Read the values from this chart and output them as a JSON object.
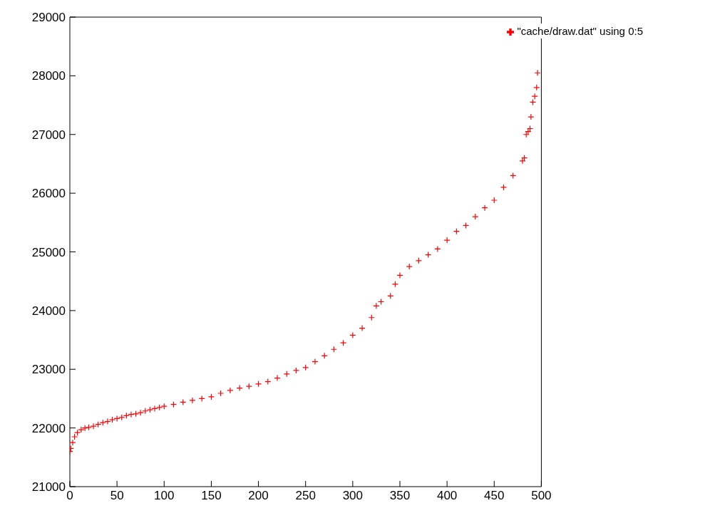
{
  "chart_data": {
    "type": "scatter",
    "marker": "cross",
    "legend": "top right",
    "grid": false,
    "xlim": [
      0,
      500
    ],
    "xticks": [
      0,
      50,
      100,
      150,
      200,
      250,
      300,
      350,
      400,
      450,
      500
    ],
    "ylim": [
      21000,
      29000
    ],
    "yticks": [
      21000,
      22000,
      23000,
      24000,
      25000,
      26000,
      27000,
      28000,
      29000
    ],
    "series": [
      {
        "name": "\"cache/draw.dat\" using 0:5",
        "color": "#ff0000",
        "x": [
          0,
          1,
          3,
          5,
          8,
          12,
          16,
          20,
          25,
          30,
          35,
          40,
          45,
          50,
          55,
          60,
          65,
          70,
          75,
          80,
          85,
          90,
          95,
          100,
          110,
          120,
          130,
          140,
          150,
          160,
          170,
          180,
          190,
          200,
          210,
          220,
          230,
          240,
          250,
          260,
          270,
          280,
          290,
          300,
          310,
          320,
          325,
          330,
          340,
          345,
          350,
          360,
          370,
          380,
          390,
          400,
          410,
          420,
          430,
          440,
          450,
          460,
          470,
          480,
          482,
          484,
          486,
          488,
          489,
          491,
          493,
          495,
          496
        ],
        "values": [
          21600,
          21650,
          21750,
          21850,
          21920,
          21970,
          22000,
          22010,
          22030,
          22060,
          22090,
          22110,
          22140,
          22160,
          22180,
          22210,
          22230,
          22240,
          22260,
          22290,
          22310,
          22330,
          22350,
          22370,
          22400,
          22440,
          22470,
          22500,
          22530,
          22590,
          22640,
          22680,
          22710,
          22750,
          22790,
          22850,
          22920,
          22980,
          23030,
          23130,
          23230,
          23340,
          23450,
          23580,
          23700,
          23880,
          24080,
          24150,
          24250,
          24450,
          24600,
          24750,
          24850,
          24950,
          25050,
          25200,
          25350,
          25450,
          25600,
          25750,
          25880,
          26100,
          26300,
          26550,
          26600,
          27000,
          27050,
          27100,
          27300,
          27550,
          27650,
          27800,
          28050
        ]
      }
    ]
  }
}
